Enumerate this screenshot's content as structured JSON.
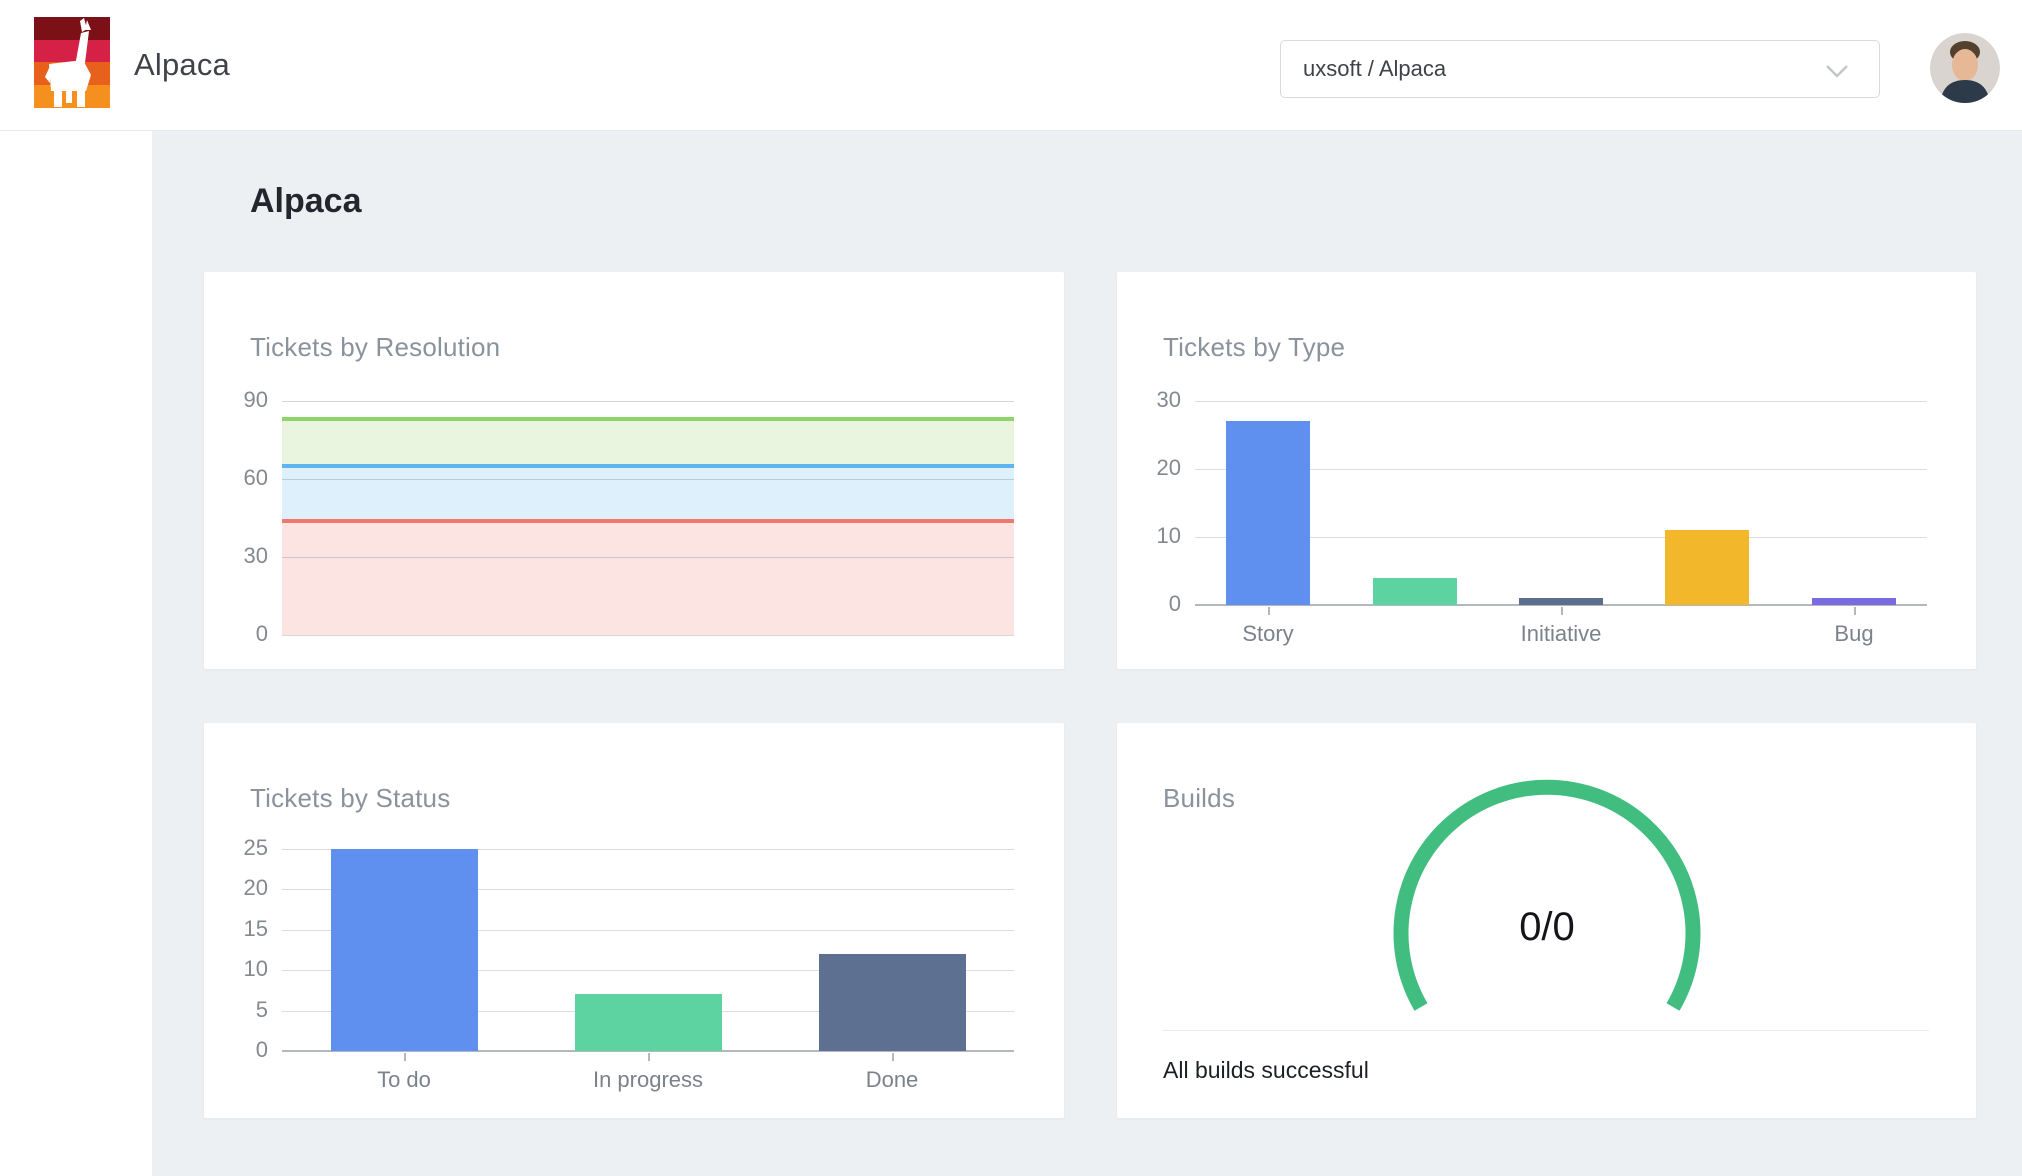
{
  "header": {
    "brand": "Alpaca",
    "project_selector": {
      "value": "uxsoft / Alpaca"
    },
    "logo_colors": [
      "#7c1017",
      "#d42145",
      "#e8611c",
      "#f58f1e"
    ]
  },
  "page": {
    "title": "Alpaca"
  },
  "chart_data": [
    {
      "type": "area",
      "title": "Tickets by Resolution",
      "ylim": [
        0,
        90
      ],
      "yticks": [
        90,
        60,
        30,
        0
      ],
      "grid": true,
      "note": "three flat horizontal series with stacked translucent fills, no x labels, no legend",
      "series": [
        {
          "name": "green",
          "value": 83,
          "line_color": "#8fd468",
          "fill_color": "#eaf5e0"
        },
        {
          "name": "blue",
          "value": 65,
          "line_color": "#5db4ef",
          "fill_color": "#def0fb"
        },
        {
          "name": "red",
          "value": 44,
          "line_color": "#f0776d",
          "fill_color": "#fce4e3"
        }
      ]
    },
    {
      "type": "bar",
      "title": "Tickets by Type",
      "categories": [
        "Story",
        "",
        "Initiative",
        "",
        "Bug"
      ],
      "values": [
        27,
        4,
        1,
        11,
        1
      ],
      "bar_colors": [
        "#5f8fef",
        "#5ed3a2",
        "#5c6e8e",
        "#f3b72b",
        "#7a6be0"
      ],
      "ylim": [
        0,
        30
      ],
      "yticks": [
        30,
        20,
        10,
        0
      ],
      "grid": true,
      "legend": false
    },
    {
      "type": "bar",
      "title": "Tickets by Status",
      "categories": [
        "To do",
        "In progress",
        "Done"
      ],
      "values": [
        25,
        7,
        12
      ],
      "bar_colors": [
        "#5f8fef",
        "#5ed3a2",
        "#5d7092"
      ],
      "ylim": [
        0,
        25
      ],
      "yticks": [
        25,
        20,
        15,
        10,
        5,
        0
      ],
      "grid": true,
      "legend": false
    },
    {
      "type": "gauge",
      "title": "Builds",
      "center_label": "0/0",
      "status_text": "All builds successful",
      "gauge_color": "#41bd7f",
      "sweep_deg": 240
    }
  ]
}
